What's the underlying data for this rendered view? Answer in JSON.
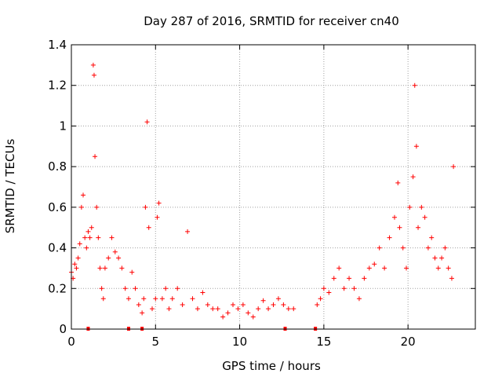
{
  "chart_data": {
    "type": "scatter",
    "title": "Day 287 of 2016, SRMTID for receiver cn40",
    "xlabel": "GPS time / hours",
    "ylabel": "SRMTID / TECUs",
    "xlim": [
      0,
      24
    ],
    "ylim": [
      0,
      1.4
    ],
    "xticks": [
      0,
      5,
      10,
      15,
      20
    ],
    "xtick_labels": [
      "0",
      "5",
      "10",
      "15",
      "20"
    ],
    "yticks": [
      0,
      0.2,
      0.4,
      0.6,
      0.8,
      1.0,
      1.2,
      1.4
    ],
    "ytick_labels": [
      "0",
      "0.2",
      "0.4",
      "0.6",
      "0.8",
      "1",
      "1.2",
      "1.4"
    ],
    "grid": true,
    "marker": "+",
    "series": [
      {
        "name": "SRMTID cn40",
        "color": "#ff0000",
        "x": [
          0.0,
          0.1,
          0.2,
          0.3,
          0.4,
          0.5,
          0.6,
          0.7,
          0.8,
          0.9,
          1.0,
          1.1,
          1.2,
          1.3,
          1.35,
          1.4,
          1.5,
          1.6,
          1.7,
          1.8,
          1.9,
          2.0,
          2.2,
          2.4,
          2.6,
          2.8,
          3.0,
          3.2,
          3.4,
          3.6,
          3.8,
          4.0,
          4.2,
          4.3,
          4.4,
          4.5,
          4.6,
          4.8,
          5.0,
          5.1,
          5.2,
          5.4,
          5.6,
          5.8,
          6.0,
          6.3,
          6.6,
          6.9,
          7.2,
          7.5,
          7.8,
          8.1,
          8.4,
          8.7,
          9.0,
          9.3,
          9.6,
          9.9,
          10.2,
          10.5,
          10.8,
          11.1,
          11.4,
          11.7,
          12.0,
          12.3,
          12.6,
          12.9,
          13.2,
          14.6,
          14.8,
          15.0,
          15.3,
          15.6,
          15.9,
          16.2,
          16.5,
          16.8,
          17.1,
          17.4,
          17.7,
          18.0,
          18.3,
          18.6,
          18.9,
          19.2,
          19.4,
          19.5,
          19.7,
          19.9,
          20.1,
          20.3,
          20.4,
          20.5,
          20.6,
          20.8,
          21.0,
          21.2,
          21.4,
          21.6,
          21.8,
          22.0,
          22.2,
          22.4,
          22.6,
          22.7
        ],
        "y": [
          0.28,
          0.25,
          0.32,
          0.3,
          0.35,
          0.42,
          0.6,
          0.66,
          0.45,
          0.4,
          0.48,
          0.45,
          0.5,
          1.3,
          1.25,
          0.85,
          0.6,
          0.45,
          0.3,
          0.2,
          0.15,
          0.3,
          0.35,
          0.45,
          0.38,
          0.35,
          0.3,
          0.2,
          0.15,
          0.28,
          0.2,
          0.12,
          0.08,
          0.15,
          0.6,
          1.02,
          0.5,
          0.1,
          0.15,
          0.55,
          0.62,
          0.15,
          0.2,
          0.1,
          0.15,
          0.2,
          0.12,
          0.48,
          0.15,
          0.1,
          0.18,
          0.12,
          0.1,
          0.1,
          0.06,
          0.08,
          0.12,
          0.1,
          0.12,
          0.08,
          0.06,
          0.1,
          0.14,
          0.1,
          0.12,
          0.15,
          0.12,
          0.1,
          0.1,
          0.12,
          0.15,
          0.2,
          0.18,
          0.25,
          0.3,
          0.2,
          0.25,
          0.2,
          0.15,
          0.25,
          0.3,
          0.32,
          0.4,
          0.3,
          0.45,
          0.55,
          0.72,
          0.5,
          0.4,
          0.3,
          0.6,
          0.75,
          1.2,
          0.9,
          0.5,
          0.6,
          0.55,
          0.4,
          0.45,
          0.35,
          0.3,
          0.35,
          0.4,
          0.3,
          0.25,
          0.8
        ],
        "zeros_x": [
          1.0,
          3.4,
          4.2,
          12.7,
          14.5
        ]
      }
    ]
  }
}
